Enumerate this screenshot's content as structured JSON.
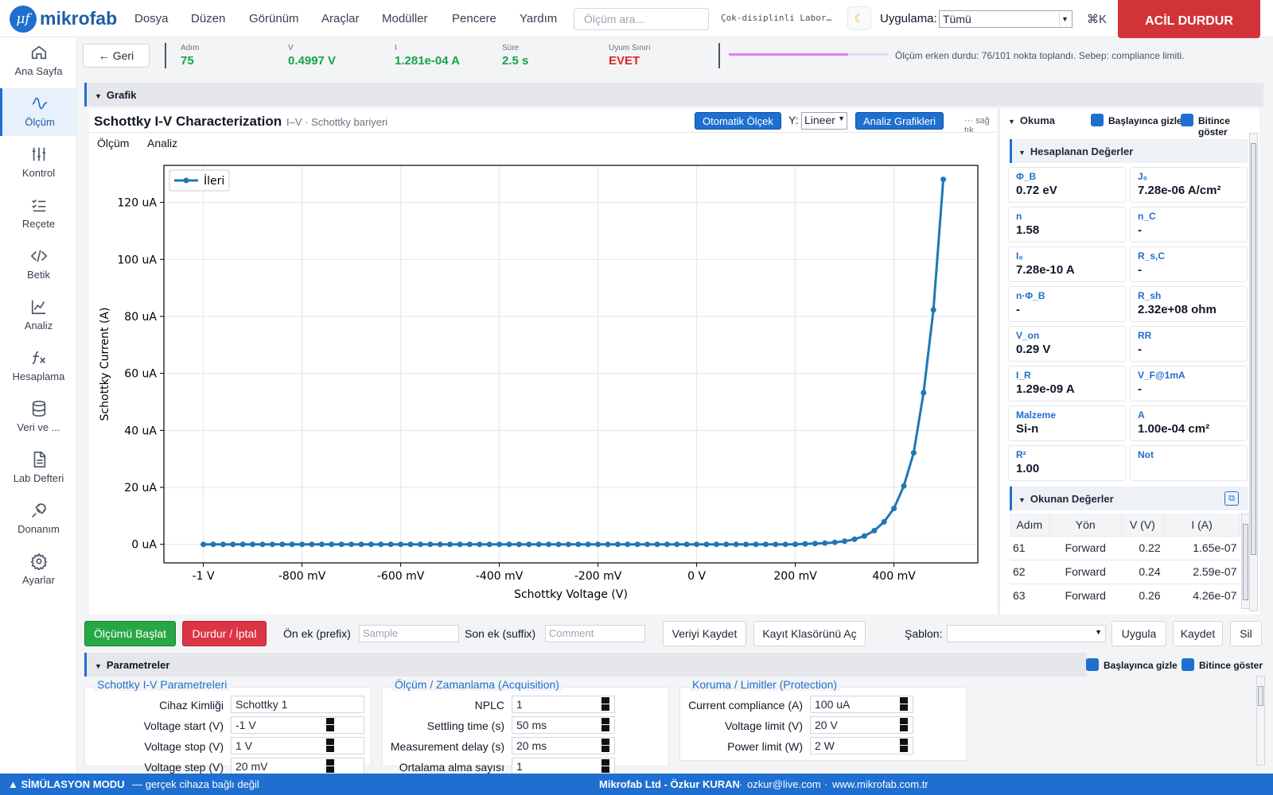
{
  "app": {
    "logo_mark": "μf",
    "name": "mikrofab"
  },
  "menu": [
    "Dosya",
    "Düzen",
    "Görünüm",
    "Araçlar",
    "Modüller",
    "Pencere",
    "Yardım"
  ],
  "search": {
    "placeholder": "Ölçüm ara..."
  },
  "lab_name": "Çok-disiplinli Labor…",
  "application": {
    "label": "Uygulama:",
    "value": "Tümü"
  },
  "shortcut": "⌘K",
  "emergency_stop": "ACİL DURDUR",
  "sidebar": [
    {
      "label": "Ana Sayfa",
      "icon": "home-icon"
    },
    {
      "label": "Ölçüm",
      "icon": "waveform-icon",
      "active": true
    },
    {
      "label": "Kontrol",
      "icon": "sliders-icon"
    },
    {
      "label": "Reçete",
      "icon": "checklist-icon"
    },
    {
      "label": "Betik",
      "icon": "code-icon"
    },
    {
      "label": "Analiz",
      "icon": "line-chart-icon"
    },
    {
      "label": "Hesaplama",
      "icon": "function-icon"
    },
    {
      "label": "Veri ve ...",
      "icon": "database-icon"
    },
    {
      "label": "Lab Defteri",
      "icon": "document-icon"
    },
    {
      "label": "Donanım",
      "icon": "plug-icon"
    },
    {
      "label": "Ayarlar",
      "icon": "gear-icon"
    }
  ],
  "status": {
    "back_label": "← Geri",
    "items": [
      {
        "key": "Adım",
        "value": "75"
      },
      {
        "key": "V",
        "value": "0.4997 V"
      },
      {
        "key": "I",
        "value": "1.281e-04 A"
      },
      {
        "key": "Süre",
        "value": "2.5 s"
      },
      {
        "key": "Uyum Sınırı",
        "value": "EVET"
      }
    ],
    "progress": 0.75,
    "message": "Ölçüm erken durdu: 76/101 nokta toplandı. Sebep: compliance limiti."
  },
  "graph_section": "Grafik",
  "chart_header": {
    "title": "Schottky I-V Characterization",
    "subtitle": "I–V · Schottky bariyeri",
    "auto_scale": "Otomatik Ölçek",
    "y_label": "Y:",
    "y_scale": "Lineer",
    "analysis_plots": "Analiz Grafikleri",
    "hint": "··· sağ tık",
    "tabs": [
      "Ölçüm",
      "Analiz"
    ]
  },
  "chart_data": {
    "type": "line",
    "xlabel": "Schottky Voltage (V)",
    "ylabel": "Schottky Current (A)",
    "xlim": [
      -1.08,
      0.57
    ],
    "ylim": [
      -6.5,
      133
    ],
    "xticks": [
      -1.0,
      -0.8,
      -0.6,
      -0.4,
      -0.2,
      0.0,
      0.2,
      0.4
    ],
    "xtick_labels": [
      "-1 V",
      "-800 mV",
      "-600 mV",
      "-400 mV",
      "-200 mV",
      "0 V",
      "200 mV",
      "400 mV"
    ],
    "yticks": [
      0,
      20,
      40,
      60,
      80,
      100,
      120
    ],
    "ytick_labels": [
      "0 uA",
      "20 uA",
      "40 uA",
      "60 uA",
      "80 uA",
      "100 uA",
      "120 uA"
    ],
    "grid": true,
    "legend_position": "top-left",
    "color": "#1f77b4",
    "series": [
      {
        "name": "İleri",
        "x": [
          -1.0,
          -0.98,
          -0.96,
          -0.94,
          -0.92,
          -0.9,
          -0.88,
          -0.86,
          -0.84,
          -0.82,
          -0.8,
          -0.78,
          -0.76,
          -0.74,
          -0.72,
          -0.7,
          -0.68,
          -0.66,
          -0.64,
          -0.62,
          -0.6,
          -0.58,
          -0.56,
          -0.54,
          -0.52,
          -0.5,
          -0.48,
          -0.46,
          -0.44,
          -0.42,
          -0.4,
          -0.38,
          -0.36,
          -0.34,
          -0.32,
          -0.3,
          -0.28,
          -0.26,
          -0.24,
          -0.22,
          -0.2,
          -0.18,
          -0.16,
          -0.14,
          -0.12,
          -0.1,
          -0.08,
          -0.06,
          -0.04,
          -0.02,
          0.0,
          0.02,
          0.04,
          0.06,
          0.08,
          0.1,
          0.12,
          0.14,
          0.16,
          0.18,
          0.2,
          0.22,
          0.24,
          0.26,
          0.28,
          0.3,
          0.32,
          0.34,
          0.36,
          0.38,
          0.4,
          0.42,
          0.44,
          0.46,
          0.48,
          0.5
        ],
        "y": [
          0,
          0,
          0,
          0,
          0,
          0,
          0,
          0,
          0,
          0,
          0,
          0,
          0,
          0,
          0,
          0,
          0,
          0,
          0,
          0,
          0,
          0,
          0,
          0,
          0,
          0,
          0,
          0,
          0,
          0,
          0,
          0,
          0,
          0,
          0,
          0,
          0,
          0,
          0,
          0,
          0,
          0,
          0,
          0,
          0,
          0,
          0,
          0,
          0,
          0,
          0,
          0,
          0,
          0,
          0,
          0,
          0,
          0,
          0,
          0,
          0.03,
          0.17,
          0.26,
          0.43,
          0.7,
          1.1,
          1.8,
          2.9,
          4.8,
          7.9,
          12.6,
          20.5,
          32.1,
          53.2,
          82.3,
          128.1
        ]
      }
    ]
  },
  "readout": {
    "title": "Okuma",
    "hide_on_start": "Başlayınca gizle",
    "show_on_end": "Bitince göster",
    "computed_title": "Hesaplanan Değerler",
    "computed": [
      {
        "key": "Φ_B",
        "value": "0.72 eV"
      },
      {
        "key": "J₀",
        "value": "7.28e-06 A/cm²"
      },
      {
        "key": "n",
        "value": "1.58"
      },
      {
        "key": "n_C",
        "value": "-"
      },
      {
        "key": "I₀",
        "value": "7.28e-10 A"
      },
      {
        "key": "R_s,C",
        "value": "-"
      },
      {
        "key": "n·Φ_B",
        "value": "-"
      },
      {
        "key": "R_sh",
        "value": "2.32e+08 ohm"
      },
      {
        "key": "V_on",
        "value": "0.29 V"
      },
      {
        "key": "RR",
        "value": "-"
      },
      {
        "key": "I_R",
        "value": "1.29e-09 A"
      },
      {
        "key": "V_F@1mA",
        "value": "-"
      },
      {
        "key": "Malzeme",
        "value": "Si-n"
      },
      {
        "key": "A",
        "value": "1.00e-04 cm²"
      },
      {
        "key": "R²",
        "value": "1.00"
      },
      {
        "key": "Not",
        "value": ""
      }
    ],
    "read_title": "Okunan Değerler",
    "columns": [
      "Adım",
      "Yön",
      "V (V)",
      "I (A)"
    ],
    "rows": [
      [
        "61",
        "Forward",
        "0.22",
        "1.65e-07"
      ],
      [
        "62",
        "Forward",
        "0.24",
        "2.59e-07"
      ],
      [
        "63",
        "Forward",
        "0.26",
        "4.26e-07"
      ]
    ]
  },
  "actions": {
    "start": "Ölçümü Başlat",
    "stop": "Durdur / İptal",
    "prefix_label": "Ön ek (prefix)",
    "prefix_placeholder": "Sample",
    "suffix_label": "Son ek (suffix)",
    "suffix_placeholder": "Comment",
    "save_data": "Veriyi Kaydet",
    "open_folder": "Kayıt Klasörünü Aç",
    "template_label": "Şablon:",
    "template_value": "",
    "apply": "Uygula",
    "save": "Kaydet",
    "delete": "Sil"
  },
  "params": {
    "title": "Parametreler",
    "hide_on_start": "Başlayınca gizle",
    "show_on_end": "Bitince göster",
    "groups": [
      {
        "title": "Schottky I-V Parametreleri",
        "fields": [
          {
            "label": "Cihaz Kimliği",
            "value": "Schottky 1"
          },
          {
            "label": "Voltage start (V)",
            "value": "-1 V"
          },
          {
            "label": "Voltage stop (V)",
            "value": "1 V"
          },
          {
            "label": "Voltage step (V)",
            "value": "20 mV"
          }
        ]
      },
      {
        "title": "Ölçüm / Zamanlama (Acquisition)",
        "fields": [
          {
            "label": "NPLC",
            "value": "1"
          },
          {
            "label": "Settling time (s)",
            "value": "50 ms"
          },
          {
            "label": "Measurement delay (s)",
            "value": "20 ms"
          },
          {
            "label": "Ortalama alma sayısı",
            "value": "1"
          }
        ]
      },
      {
        "title": "Koruma / Limitler (Protection)",
        "fields": [
          {
            "label": "Current compliance (A)",
            "value": "100 uA"
          },
          {
            "label": "Voltage limit (V)",
            "value": "20 V"
          },
          {
            "label": "Power limit (W)",
            "value": "2 W"
          }
        ]
      }
    ]
  },
  "footer": {
    "mode": "▲ SİMÜLASYON MODU",
    "mode_note": "— gerçek cihaza bağlı değil",
    "company": "Mikrofab Ltd - Özkur KURAN",
    "email": "ozkur@live.com",
    "website": "www.mikrofab.com.tr",
    "sep": "·"
  }
}
